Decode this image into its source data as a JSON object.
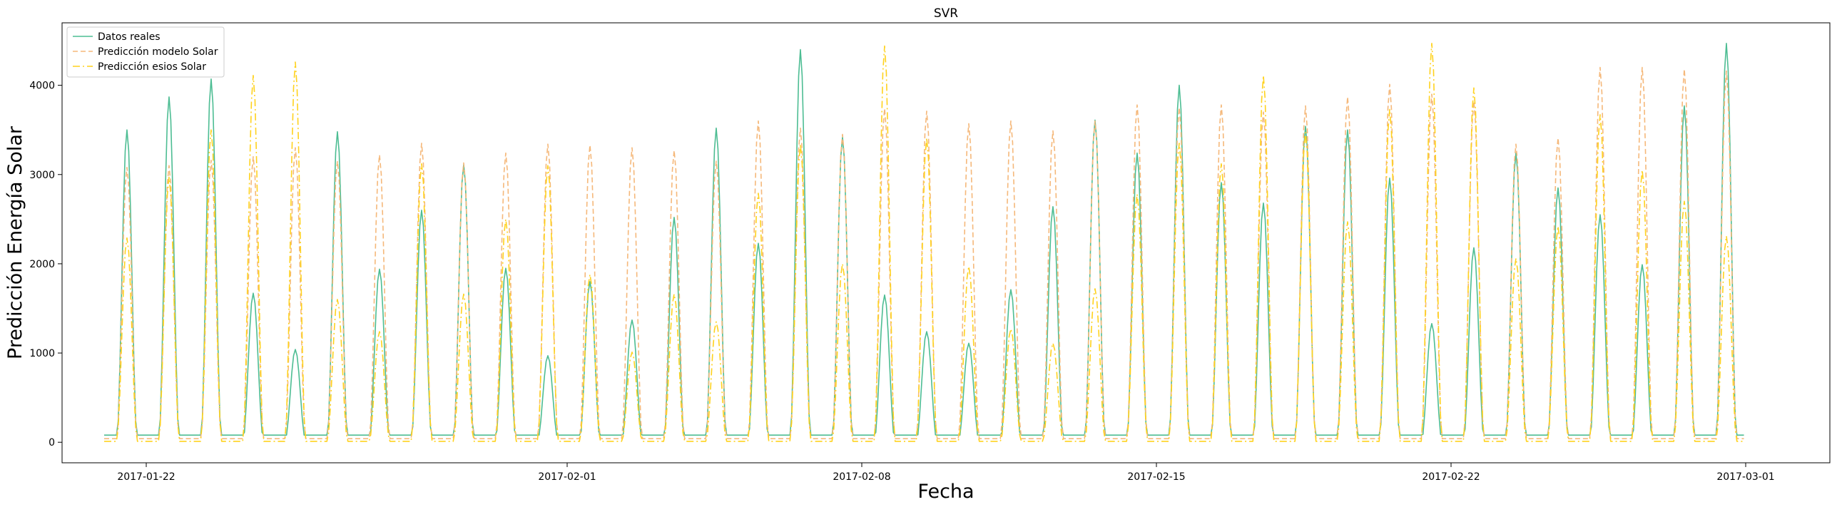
{
  "chart_data": {
    "type": "line",
    "title": "SVR",
    "xlabel": "Fecha",
    "ylabel": "Predicción Energía Solar",
    "x_ticks": [
      "2017-01-22",
      "2017-02-01",
      "2017-02-08",
      "2017-02-15",
      "2017-02-22",
      "2017-03-01"
    ],
    "y_ticks": [
      0,
      1000,
      2000,
      3000,
      4000
    ],
    "xlim": [
      "2017-01-20",
      "2017-03-03"
    ],
    "ylim": [
      -230,
      4700
    ],
    "x_start": "2017-01-21",
    "grid": false,
    "legend_position": "top-left",
    "series": [
      {
        "name": "Datos reales",
        "color": "#4dbd93",
        "dash": "solid",
        "peaks": [
          3500,
          3870,
          4070,
          1670,
          1040,
          3480,
          1940,
          2600,
          3110,
          1950,
          970,
          1800,
          1370,
          2520,
          3520,
          2230,
          4400,
          3420,
          1650,
          1240,
          1110,
          1710,
          2640,
          3610,
          3240,
          4000,
          2910,
          2680,
          3540,
          3500,
          2960,
          1330,
          2180,
          3240,
          2850,
          2550,
          1990,
          3770,
          4470
        ]
      },
      {
        "name": "Predicción modelo Solar",
        "color": "#f5b87a",
        "dash": "dashed",
        "peaks": [
          3080,
          3100,
          3160,
          3200,
          3300,
          3150,
          3220,
          3350,
          3130,
          3240,
          3340,
          3330,
          3300,
          3270,
          3150,
          3600,
          3520,
          3450,
          3740,
          3710,
          3570,
          3600,
          3490,
          3600,
          3780,
          3750,
          3780,
          3700,
          3770,
          3870,
          4010,
          3900,
          3820,
          3340,
          3410,
          4200,
          4200,
          4180,
          4160
        ]
      },
      {
        "name": "Predicción esios Solar",
        "color": "#ffd21e",
        "dash": "dashdot",
        "peaks": [
          2290,
          2970,
          3500,
          4110,
          4260,
          1600,
          1240,
          3120,
          1660,
          2500,
          3100,
          1880,
          1010,
          1660,
          1350,
          2790,
          3340,
          2000,
          4440,
          3410,
          1970,
          1270,
          1110,
          1720,
          2780,
          3350,
          3120,
          4110,
          3470,
          2470,
          3730,
          4470,
          3970,
          2060,
          2420,
          3670,
          3050,
          2700,
          2310
        ]
      }
    ]
  }
}
